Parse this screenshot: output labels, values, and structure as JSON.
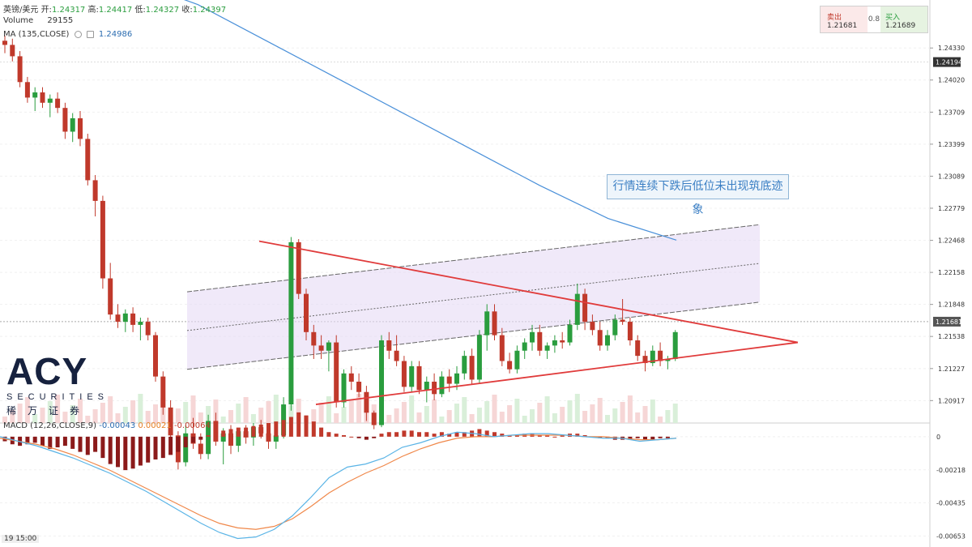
{
  "header": {
    "symbol": "英镑/美元",
    "open_label": "开:",
    "open": "1.24317",
    "high_label": "高:",
    "high": "1.24417",
    "low_label": "低:",
    "low": "1.24327",
    "close_label": "收:",
    "close": "1.24397",
    "volume_label": "Volume",
    "volume": "29155",
    "ma_label": "MA (135,CLOSE)",
    "ma_value": "1.24986",
    "macd_label": "MACD (12,26,CLOSE,9)",
    "macd_v1": "-0.00043",
    "macd_v2": "0.00021",
    "macd_v3": "-0.00064"
  },
  "trade_panel": {
    "sell_label": "卖出",
    "sell_price": "1.21681",
    "spread": "0.8",
    "buy_label": "买入",
    "buy_price": "1.21689"
  },
  "annotation": "行情连续下跌后低位未出现筑底迹象",
  "logo": {
    "brand": "ACY",
    "sub": "SECURITIES",
    "cn": "稀万证券"
  },
  "time_labels": [
    "19",
    "15:00"
  ],
  "colors": {
    "up": "#2a9d3e",
    "down": "#c0392b",
    "ma": "#4a90d9",
    "channel": "#e6daf5",
    "macd_line": "#5ab4e6",
    "signal_line": "#f0884a"
  },
  "chart_data": {
    "type": "candlestick",
    "price_axis": {
      "ticks": [
        "1.24330",
        "1.24020",
        "1.23709",
        "1.23399",
        "1.23089",
        "1.22779",
        "1.22468",
        "1.22158",
        "1.21848",
        "1.21538",
        "1.21227",
        "1.20917"
      ],
      "ylim": [
        1.207,
        1.2452
      ],
      "highlight_labels": [
        "1.24194",
        "1.21681"
      ]
    },
    "macd_axis": {
      "ticks": [
        "0",
        "-0.00218",
        "-0.00435",
        "-0.00653"
      ],
      "ylim": [
        -0.0071,
        0.0009
      ]
    },
    "candles": [
      [
        1.244,
        1.2445,
        1.2428,
        1.2436
      ],
      [
        1.2436,
        1.2442,
        1.242,
        1.2425
      ],
      [
        1.2425,
        1.243,
        1.2395,
        1.24
      ],
      [
        1.24,
        1.2405,
        1.238,
        1.2385
      ],
      [
        1.2385,
        1.2395,
        1.2372,
        1.239
      ],
      [
        1.239,
        1.2395,
        1.2375,
        1.238
      ],
      [
        1.238,
        1.2388,
        1.2366,
        1.2384
      ],
      [
        1.2384,
        1.239,
        1.237,
        1.2375
      ],
      [
        1.2375,
        1.238,
        1.2345,
        1.2352
      ],
      [
        1.2352,
        1.237,
        1.2342,
        1.2365
      ],
      [
        1.2365,
        1.2372,
        1.2338,
        1.2345
      ],
      [
        1.2345,
        1.235,
        1.23,
        1.2305
      ],
      [
        1.2305,
        1.231,
        1.227,
        1.2285
      ],
      [
        1.2285,
        1.229,
        1.22,
        1.221
      ],
      [
        1.221,
        1.2225,
        1.217,
        1.2175
      ],
      [
        1.2175,
        1.2185,
        1.2162,
        1.2168
      ],
      [
        1.2168,
        1.218,
        1.2158,
        1.2176
      ],
      [
        1.2176,
        1.2182,
        1.2158,
        1.2165
      ],
      [
        1.2165,
        1.2172,
        1.215,
        1.2168
      ],
      [
        1.2168,
        1.2172,
        1.215,
        1.2155
      ],
      [
        1.2155,
        1.2158,
        1.211,
        1.2115
      ],
      [
        1.2115,
        1.212,
        1.2078,
        1.2085
      ],
      [
        1.2085,
        1.2092,
        1.2052,
        1.2058
      ],
      [
        1.2058,
        1.2062,
        1.2025,
        1.2032
      ],
      [
        1.2032,
        1.2068,
        1.2028,
        1.206
      ],
      [
        1.206,
        1.2075,
        1.2045,
        1.205
      ],
      [
        1.205,
        1.206,
        1.2035,
        1.204
      ],
      [
        1.204,
        1.2078,
        1.2035,
        1.2072
      ],
      [
        1.2072,
        1.208,
        1.2048,
        1.2052
      ],
      [
        1.2052,
        1.2065,
        1.203,
        1.206
      ],
      [
        1.206,
        1.2068,
        1.204,
        1.2048
      ],
      [
        1.2048,
        1.2065,
        1.2042,
        1.2062
      ],
      [
        1.2062,
        1.2068,
        1.205,
        1.2056
      ],
      [
        1.2056,
        1.207,
        1.2048,
        1.2066
      ],
      [
        1.2066,
        1.2073,
        1.2055,
        1.206
      ],
      [
        1.206,
        1.2066,
        1.2045,
        1.2052
      ],
      [
        1.2052,
        1.2062,
        1.2045,
        1.2058
      ],
      [
        1.2058,
        1.2095,
        1.2055,
        1.2088
      ],
      [
        1.2088,
        1.225,
        1.2082,
        1.2245
      ],
      [
        1.2245,
        1.2248,
        1.219,
        1.2195
      ],
      [
        1.2195,
        1.22,
        1.215,
        1.2158
      ],
      [
        1.2158,
        1.2165,
        1.2132,
        1.2145
      ],
      [
        1.2145,
        1.2155,
        1.2132,
        1.214
      ],
      [
        1.214,
        1.215,
        1.212,
        1.2148
      ],
      [
        1.2148,
        1.2155,
        1.2085,
        1.209
      ],
      [
        1.209,
        1.2122,
        1.2085,
        1.2118
      ],
      [
        1.2118,
        1.2125,
        1.2102,
        1.211
      ],
      [
        1.211,
        1.2118,
        1.2095,
        1.21
      ],
      [
        1.21,
        1.2106,
        1.2072,
        1.208
      ],
      [
        1.208,
        1.2082,
        1.2064,
        1.2068
      ],
      [
        1.2068,
        1.2155,
        1.2066,
        1.215
      ],
      [
        1.215,
        1.2158,
        1.2132,
        1.214
      ],
      [
        1.214,
        1.2155,
        1.2125,
        1.213
      ],
      [
        1.213,
        1.2135,
        1.21,
        1.2105
      ],
      [
        1.2105,
        1.213,
        1.21,
        1.2125
      ],
      [
        1.2125,
        1.213,
        1.2098,
        1.2102
      ],
      [
        1.2102,
        1.2115,
        1.209,
        1.211
      ],
      [
        1.211,
        1.2118,
        1.2092,
        1.2098
      ],
      [
        1.2098,
        1.212,
        1.2095,
        1.2115
      ],
      [
        1.2115,
        1.2122,
        1.21,
        1.2108
      ],
      [
        1.2108,
        1.2125,
        1.2102,
        1.2118
      ],
      [
        1.2118,
        1.214,
        1.2112,
        1.2135
      ],
      [
        1.2135,
        1.2142,
        1.2108,
        1.2112
      ],
      [
        1.2112,
        1.216,
        1.2108,
        1.2155
      ],
      [
        1.2155,
        1.2185,
        1.214,
        1.2178
      ],
      [
        1.2178,
        1.2185,
        1.215,
        1.2155
      ],
      [
        1.2155,
        1.2162,
        1.2125,
        1.213
      ],
      [
        1.213,
        1.2138,
        1.2118,
        1.2122
      ],
      [
        1.2122,
        1.2145,
        1.2118,
        1.214
      ],
      [
        1.214,
        1.2152,
        1.2132,
        1.2148
      ],
      [
        1.2148,
        1.2165,
        1.214,
        1.2158
      ],
      [
        1.2158,
        1.2165,
        1.2135,
        1.214
      ],
      [
        1.214,
        1.2148,
        1.2132,
        1.2145
      ],
      [
        1.2145,
        1.2155,
        1.2138,
        1.215
      ],
      [
        1.215,
        1.2158,
        1.2142,
        1.2148
      ],
      [
        1.2148,
        1.217,
        1.2145,
        1.2165
      ],
      [
        1.2165,
        1.2205,
        1.216,
        1.2195
      ],
      [
        1.2195,
        1.22,
        1.216,
        1.2168
      ],
      [
        1.2168,
        1.2175,
        1.2155,
        1.216
      ],
      [
        1.216,
        1.2168,
        1.214,
        1.2145
      ],
      [
        1.2145,
        1.216,
        1.214,
        1.2155
      ],
      [
        1.2155,
        1.2175,
        1.215,
        1.217
      ],
      [
        1.217,
        1.219,
        1.2165,
        1.2168
      ],
      [
        1.2168,
        1.2172,
        1.2145,
        1.215
      ],
      [
        1.215,
        1.2155,
        1.213,
        1.2135
      ],
      [
        1.2135,
        1.214,
        1.212,
        1.2128
      ],
      [
        1.2128,
        1.2145,
        1.2125,
        1.214
      ],
      [
        1.214,
        1.2148,
        1.2125,
        1.213
      ],
      [
        1.213,
        1.2135,
        1.2122,
        1.2132
      ],
      [
        1.2132,
        1.216,
        1.213,
        1.2158
      ]
    ],
    "ma": [
      1.2499,
      1.2475,
      1.244,
      1.2405,
      1.237,
      1.2335,
      1.23,
      1.2268,
      1.2247
    ],
    "channel": {
      "lower_start": [
        1.2122,
        1.2
      ],
      "lower_end": [
        1.2187,
        1.2187
      ],
      "width": 0.0075
    },
    "triangle": {
      "apex": 1.2148,
      "top": 1.2246,
      "bottom": 1.2088
    },
    "macd_hist": [
      -0.0003,
      -0.0005,
      -0.0006,
      -0.0005,
      -0.0004,
      -0.0006,
      -0.0008,
      -0.0007,
      -0.0006,
      -0.0008,
      -0.001,
      -0.0012,
      -0.001,
      -0.0014,
      -0.0018,
      -0.002,
      -0.0022,
      -0.0021,
      -0.0019,
      -0.0017,
      -0.0015,
      -0.0014,
      -0.0012,
      -0.001,
      -0.0007,
      -0.0004,
      -0.0002,
      0.0001,
      0.0003,
      0.0004,
      0.0005,
      0.0006,
      0.0006,
      0.0007,
      0.0008,
      0.0009,
      0.001,
      0.0011,
      0.0013,
      0.0016,
      0.0014,
      0.001,
      0.0006,
      0.0003,
      0.0002,
      0.0001,
      0.0,
      -0.0001,
      -0.0002,
      -0.0001,
      0.0002,
      0.0003,
      0.0003,
      0.0004,
      0.0004,
      0.0003,
      0.0003,
      0.0002,
      0.0003,
      0.0002,
      0.0003,
      0.0003,
      0.0004,
      0.0005,
      0.0004,
      0.0003,
      0.0002,
      0.0001,
      0.0001,
      0.0002,
      0.0002,
      0.0001,
      0.0001,
      0.0,
      0.0001,
      0.0002,
      0.0002,
      0.0001,
      0.0,
      -0.0001,
      -0.0001,
      -0.0002,
      -0.0002,
      -0.0002,
      -0.0001,
      -0.0002,
      -0.0002,
      -0.0001,
      -0.0001
    ],
    "macd_line": [
      0.0,
      -0.0003,
      -0.0006,
      -0.001,
      -0.0014,
      -0.0019,
      -0.0024,
      -0.003,
      -0.0036,
      -0.0043,
      -0.005,
      -0.0057,
      -0.0063,
      -0.0067,
      -0.0066,
      -0.0061,
      -0.0052,
      -0.004,
      -0.0027,
      -0.002,
      -0.0018,
      -0.0014,
      -0.0007,
      -0.0004,
      0.0,
      0.0003,
      0.0002,
      0.0,
      0.0001,
      0.0002,
      0.0002,
      0.0001,
      0.0,
      -0.0001,
      -0.0001,
      -0.0003,
      -0.0002,
      -0.0001
    ],
    "signal_line": [
      -0.0001,
      -0.0003,
      -0.0005,
      -0.0008,
      -0.0012,
      -0.0017,
      -0.0022,
      -0.0028,
      -0.0034,
      -0.004,
      -0.0046,
      -0.0052,
      -0.0057,
      -0.006,
      -0.0061,
      -0.0059,
      -0.0054,
      -0.0046,
      -0.0037,
      -0.003,
      -0.0024,
      -0.0019,
      -0.0013,
      -0.0008,
      -0.0004,
      -0.0001,
      0.0,
      0.0,
      0.0001,
      0.0001,
      0.0001,
      0.0001,
      0.0,
      0.0,
      -0.0001,
      -0.0002,
      -0.0002,
      -0.0001
    ]
  }
}
